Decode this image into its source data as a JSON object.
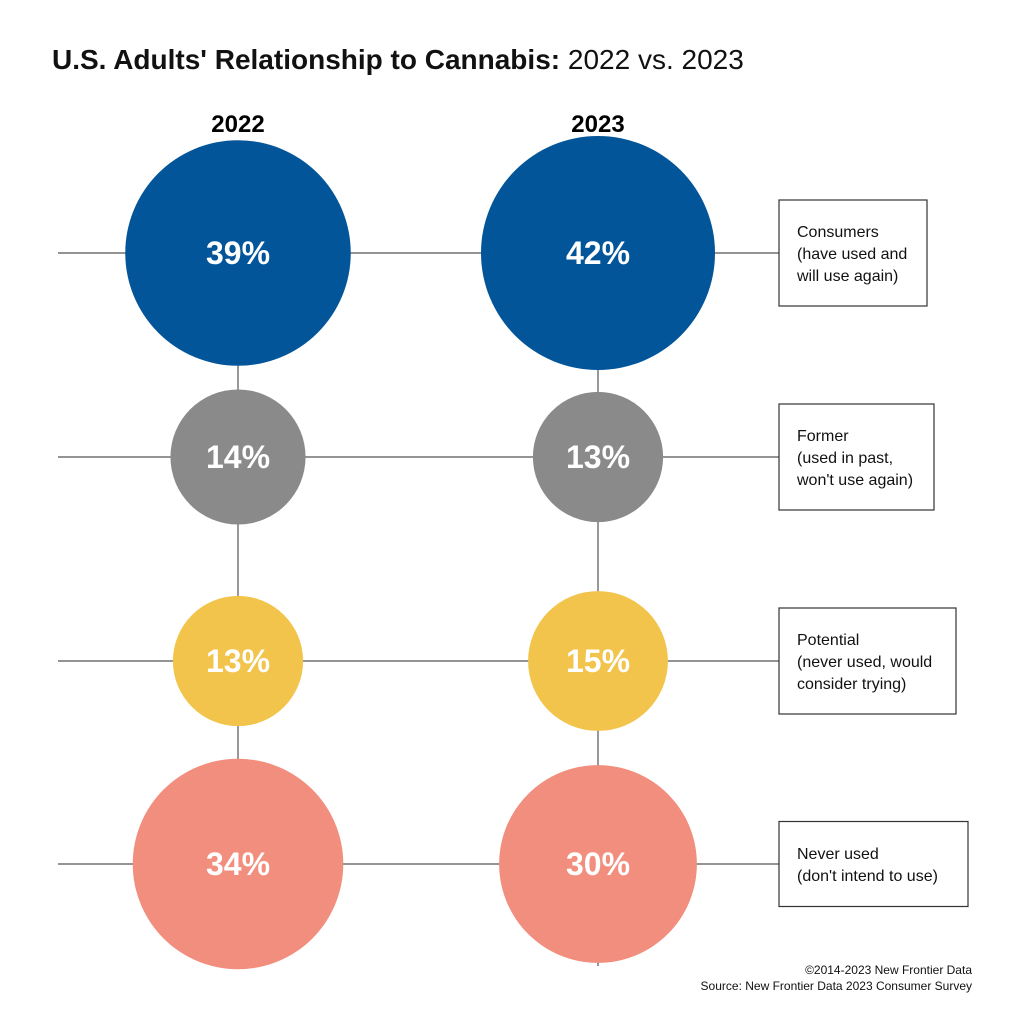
{
  "title": {
    "bold": "U.S. Adults' Relationship to Cannabis:",
    "normal": "2022 vs. 2023"
  },
  "chart_data": {
    "type": "bubble-grid",
    "columns": [
      "2022",
      "2023"
    ],
    "rows": [
      {
        "label_lines": [
          "Consumers",
          "(have used and",
          "will use again)"
        ],
        "color": "#03559a",
        "values": [
          39,
          42
        ],
        "value_labels": [
          "39%",
          "42%"
        ]
      },
      {
        "label_lines": [
          "Former",
          "(used in past,",
          "won't use again)"
        ],
        "color": "#8a8a8a",
        "values": [
          14,
          13
        ],
        "value_labels": [
          "14%",
          "13%"
        ]
      },
      {
        "label_lines": [
          "Potential",
          "(never used, would",
          "consider trying)"
        ],
        "color": "#f2c44b",
        "values": [
          13,
          15
        ],
        "value_labels": [
          "13%",
          "15%"
        ]
      },
      {
        "label_lines": [
          "Never used",
          "(don't intend to use)"
        ],
        "color": "#f28e7d",
        "values": [
          34,
          30
        ],
        "value_labels": [
          "34%",
          "30%"
        ]
      }
    ],
    "unit": "%"
  },
  "footer": {
    "copyright": "©2014-2023  New Frontier Data",
    "source": "Source: New Frontier Data 2023 Consumer Survey"
  }
}
